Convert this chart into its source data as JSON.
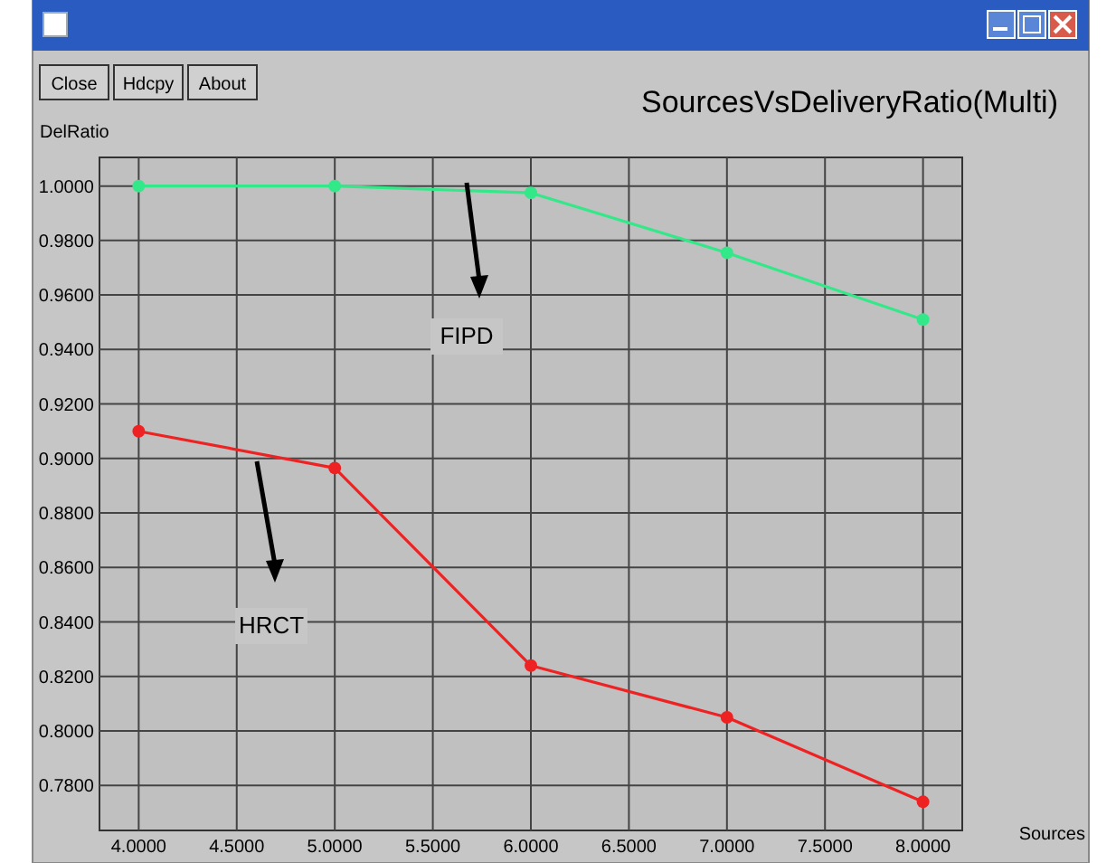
{
  "chart_data": {
    "type": "line",
    "title": "SourcesVsDeliveryRatio(Multi)",
    "xlabel": "Sources",
    "ylabel": "DelRatio",
    "x": [
      4,
      5,
      6,
      7,
      8
    ],
    "series": [
      {
        "color": "#33e888",
        "values": [
          1.0,
          1.0,
          0.9975,
          0.9755,
          0.951
        ]
      },
      {
        "color": "#ee2222",
        "values": [
          0.91,
          0.8965,
          0.824,
          0.805,
          0.774
        ]
      }
    ],
    "xlim": [
      3.8,
      8.2
    ],
    "ylim": [
      0.7635,
      1.0105
    ],
    "xticks": [
      {
        "value": 4,
        "label": "4.0000"
      },
      {
        "value": 4.5,
        "label": "4.5000"
      },
      {
        "value": 5,
        "label": "5.0000"
      },
      {
        "value": 5.5,
        "label": "5.5000"
      },
      {
        "value": 6,
        "label": "6.0000"
      },
      {
        "value": 6.5,
        "label": "6.5000"
      },
      {
        "value": 7,
        "label": "7.0000"
      },
      {
        "value": 7.5,
        "label": "7.5000"
      },
      {
        "value": 8,
        "label": "8.0000"
      }
    ],
    "yticks": [
      {
        "value": 0.78,
        "label": "0.7800"
      },
      {
        "value": 0.8,
        "label": "0.8000"
      },
      {
        "value": 0.82,
        "label": "0.8200"
      },
      {
        "value": 0.84,
        "label": "0.8400"
      },
      {
        "value": 0.86,
        "label": "0.8600"
      },
      {
        "value": 0.88,
        "label": "0.8800"
      },
      {
        "value": 0.9,
        "label": "0.9000"
      },
      {
        "value": 0.92,
        "label": "0.9200"
      },
      {
        "value": 0.94,
        "label": "0.9400"
      },
      {
        "value": 0.96,
        "label": "0.9600"
      },
      {
        "value": 0.98,
        "label": "0.9800"
      },
      {
        "value": 1.0,
        "label": "1.0000"
      }
    ],
    "grid": true,
    "marker": "circle",
    "line_style": "solid",
    "annotations": [
      "Close",
      "Hdcpy",
      "About",
      "FIPD",
      "HRCT"
    ]
  }
}
